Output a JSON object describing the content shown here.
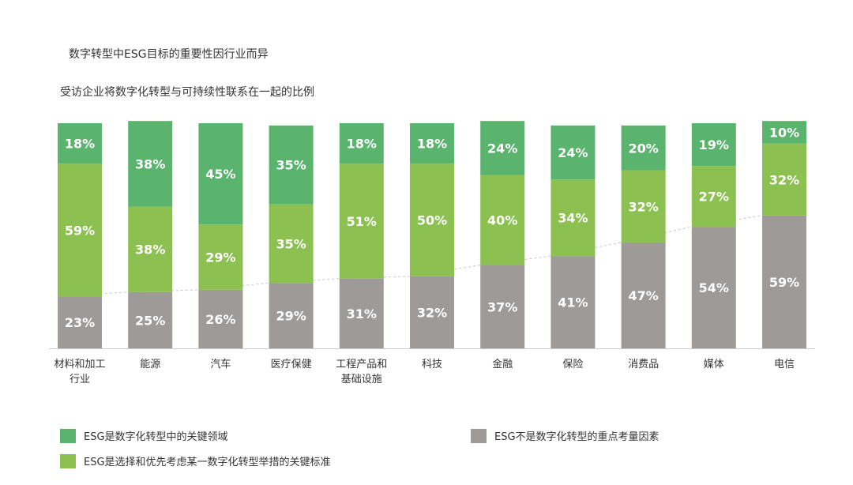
{
  "colors": {
    "dark_green": "#5bb46e",
    "light_green": "#8cc152",
    "gray": "#9e9a97",
    "label_text": "#ffffff",
    "axis_line": "#cccccc",
    "dashed_line": "#c8c8c8"
  },
  "chart_data": {
    "type": "bar",
    "stacked": true,
    "title": "数字转型中ESG目标的重要性因行业而异",
    "subtitle": "受访企业将数字化转型与可持续性联系在一起的比例",
    "categories": [
      [
        "材料和加工",
        "行业"
      ],
      [
        "能源"
      ],
      [
        "汽车"
      ],
      [
        "医疗保健"
      ],
      [
        "工程产品和",
        "基础设施"
      ],
      [
        "科技"
      ],
      [
        "金融"
      ],
      [
        "保险"
      ],
      [
        "消费品"
      ],
      [
        "媒体"
      ],
      [
        "电信"
      ]
    ],
    "series": [
      {
        "name": "ESG不是数字化转型的重点考量因素",
        "color": "#9e9a97",
        "values": [
          23,
          25,
          26,
          29,
          31,
          32,
          37,
          41,
          47,
          54,
          59
        ],
        "labels": [
          "23%",
          "25%",
          "26%",
          "29%",
          "31%",
          "32%",
          "37%",
          "41%",
          "47%",
          "54%",
          "59%"
        ]
      },
      {
        "name": "ESG是选择和优先考虑某一数字化转型举措的关键标准",
        "color": "#8cc152",
        "values": [
          59,
          38,
          29,
          35,
          51,
          50,
          40,
          34,
          32,
          27,
          32
        ],
        "labels": [
          "59%",
          "38%",
          "29%",
          "35%",
          "51%",
          "50%",
          "40%",
          "34%",
          "32%",
          "27%",
          "32%"
        ]
      },
      {
        "name": "ESG是数字化转型中的关键领域",
        "color": "#5bb46e",
        "values": [
          18,
          38,
          45,
          35,
          18,
          18,
          24,
          24,
          20,
          19,
          10
        ],
        "labels": [
          "18%",
          "38%",
          "45%",
          "35%",
          "18%",
          "18%",
          "24%",
          "24%",
          "20%",
          "19%",
          "10%"
        ]
      }
    ],
    "ylim": [
      0,
      100
    ],
    "xlabel": "",
    "ylabel": "",
    "grid": false,
    "legend_position": "bottom"
  },
  "legend": {
    "key_area": "ESG是数字化转型中的关键领域",
    "key_criterion": "ESG是选择和优先考虑某一数字化转型举措的关键标准",
    "not_focus": "ESG不是数字化转型的重点考量因素"
  }
}
